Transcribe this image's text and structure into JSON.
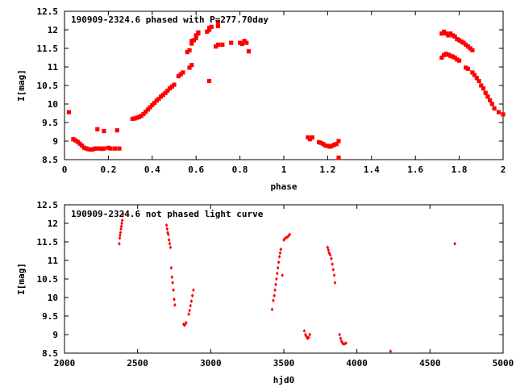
{
  "colors": {
    "points": "#ff0000",
    "axes": "#000000",
    "background": "#ffffff"
  },
  "chart_data": [
    {
      "type": "scatter",
      "title": "190909-2324.6 phased with P=277.70day",
      "xlabel": "phase",
      "ylabel": "I[mag]",
      "xlim": [
        0,
        2
      ],
      "ylim": [
        12.5,
        8.5
      ],
      "y_inverted": true,
      "xticks": [
        0,
        0.2,
        0.4,
        0.6,
        0.8,
        1,
        1.2,
        1.4,
        1.6,
        1.8,
        2
      ],
      "xtick_labels": [
        "0",
        "0.2",
        "0.4",
        "0.6",
        "0.8",
        "1",
        "1.2",
        "1.4",
        "1.6",
        "1.8",
        "2"
      ],
      "yticks": [
        8.5,
        9,
        9.5,
        10,
        10.5,
        11,
        11.5,
        12,
        12.5
      ],
      "ytick_labels": [
        "8.5",
        "9",
        "9.5",
        "10",
        "10.5",
        "11",
        "11.5",
        "12",
        "12.5"
      ],
      "grid": false,
      "points": [
        [
          0.02,
          9.78
        ],
        [
          0.04,
          9.05
        ],
        [
          0.05,
          9.02
        ],
        [
          0.06,
          8.98
        ],
        [
          0.07,
          8.93
        ],
        [
          0.08,
          8.88
        ],
        [
          0.09,
          8.82
        ],
        [
          0.1,
          8.8
        ],
        [
          0.11,
          8.78
        ],
        [
          0.12,
          8.77
        ],
        [
          0.13,
          8.78
        ],
        [
          0.14,
          8.8
        ],
        [
          0.15,
          8.8
        ],
        [
          0.16,
          8.8
        ],
        [
          0.17,
          8.79
        ],
        [
          0.18,
          8.8
        ],
        [
          0.2,
          8.82
        ],
        [
          0.21,
          8.8
        ],
        [
          0.23,
          8.8
        ],
        [
          0.25,
          8.8
        ],
        [
          0.15,
          9.32
        ],
        [
          0.18,
          9.27
        ],
        [
          0.24,
          9.29
        ],
        [
          0.31,
          9.6
        ],
        [
          0.32,
          9.61
        ],
        [
          0.33,
          9.63
        ],
        [
          0.34,
          9.65
        ],
        [
          0.35,
          9.68
        ],
        [
          0.36,
          9.73
        ],
        [
          0.37,
          9.79
        ],
        [
          0.38,
          9.85
        ],
        [
          0.39,
          9.91
        ],
        [
          0.4,
          9.97
        ],
        [
          0.41,
          10.03
        ],
        [
          0.42,
          10.09
        ],
        [
          0.43,
          10.14
        ],
        [
          0.44,
          10.2
        ],
        [
          0.45,
          10.25
        ],
        [
          0.46,
          10.3
        ],
        [
          0.47,
          10.36
        ],
        [
          0.48,
          10.42
        ],
        [
          0.49,
          10.47
        ],
        [
          0.5,
          10.52
        ],
        [
          0.52,
          10.75
        ],
        [
          0.53,
          10.8
        ],
        [
          0.54,
          10.85
        ],
        [
          0.57,
          10.98
        ],
        [
          0.58,
          11.05
        ],
        [
          0.56,
          11.4
        ],
        [
          0.57,
          11.45
        ],
        [
          0.58,
          11.63
        ],
        [
          0.58,
          11.7
        ],
        [
          0.59,
          11.72
        ],
        [
          0.6,
          11.78
        ],
        [
          0.6,
          11.85
        ],
        [
          0.61,
          11.9
        ],
        [
          0.61,
          11.93
        ],
        [
          0.65,
          11.95
        ],
        [
          0.66,
          12.0
        ],
        [
          0.66,
          12.05
        ],
        [
          0.67,
          12.08
        ],
        [
          0.66,
          10.62
        ],
        [
          0.69,
          11.55
        ],
        [
          0.7,
          11.6
        ],
        [
          0.7,
          12.1
        ],
        [
          0.7,
          12.2
        ],
        [
          0.72,
          11.6
        ],
        [
          0.76,
          11.65
        ],
        [
          0.8,
          11.65
        ],
        [
          0.81,
          11.62
        ],
        [
          0.82,
          11.7
        ],
        [
          0.83,
          11.65
        ],
        [
          0.84,
          11.42
        ],
        [
          1.11,
          9.1
        ],
        [
          1.12,
          9.05
        ],
        [
          1.13,
          9.1
        ],
        [
          1.16,
          8.97
        ],
        [
          1.17,
          8.95
        ],
        [
          1.18,
          8.92
        ],
        [
          1.19,
          8.88
        ],
        [
          1.2,
          8.87
        ],
        [
          1.21,
          8.85
        ],
        [
          1.22,
          8.87
        ],
        [
          1.23,
          8.9
        ],
        [
          1.24,
          8.92
        ],
        [
          1.25,
          8.55
        ],
        [
          1.25,
          9.0
        ],
        [
          1.72,
          11.25
        ],
        [
          1.73,
          11.32
        ],
        [
          1.74,
          11.35
        ],
        [
          1.75,
          11.33
        ],
        [
          1.76,
          11.3
        ],
        [
          1.77,
          11.28
        ],
        [
          1.78,
          11.25
        ],
        [
          1.79,
          11.2
        ],
        [
          1.8,
          11.17
        ],
        [
          1.72,
          11.9
        ],
        [
          1.73,
          11.95
        ],
        [
          1.74,
          11.9
        ],
        [
          1.75,
          11.85
        ],
        [
          1.76,
          11.9
        ],
        [
          1.77,
          11.85
        ],
        [
          1.78,
          11.82
        ],
        [
          1.79,
          11.75
        ],
        [
          1.8,
          11.72
        ],
        [
          1.81,
          11.68
        ],
        [
          1.82,
          11.65
        ],
        [
          1.83,
          11.6
        ],
        [
          1.84,
          11.55
        ],
        [
          1.85,
          11.5
        ],
        [
          1.86,
          11.45
        ],
        [
          1.83,
          10.98
        ],
        [
          1.84,
          10.95
        ],
        [
          1.86,
          10.85
        ],
        [
          1.87,
          10.78
        ],
        [
          1.88,
          10.7
        ],
        [
          1.89,
          10.62
        ],
        [
          1.9,
          10.5
        ],
        [
          1.91,
          10.42
        ],
        [
          1.92,
          10.3
        ],
        [
          1.93,
          10.2
        ],
        [
          1.94,
          10.1
        ],
        [
          1.95,
          10.0
        ],
        [
          1.96,
          9.88
        ],
        [
          1.98,
          9.78
        ],
        [
          2.0,
          9.72
        ]
      ]
    },
    {
      "type": "scatter",
      "title": "190909-2324.6 not phased light curve",
      "xlabel": "hjd0",
      "ylabel": "I[mag]",
      "xlim": [
        2000,
        5000
      ],
      "ylim": [
        12.5,
        8.5
      ],
      "y_inverted": true,
      "xticks": [
        2000,
        2500,
        3000,
        3500,
        4000,
        4500,
        5000
      ],
      "xtick_labels": [
        "2000",
        "2500",
        "3000",
        "3500",
        "4000",
        "4500",
        "5000"
      ],
      "yticks": [
        8.5,
        9,
        9.5,
        10,
        10.5,
        11,
        11.5,
        12,
        12.5
      ],
      "ytick_labels": [
        "8.5",
        "9",
        "9.5",
        "10",
        "10.5",
        "11",
        "11.5",
        "12",
        "12.5"
      ],
      "grid": false,
      "points": [
        [
          2375,
          11.45
        ],
        [
          2378,
          11.6
        ],
        [
          2380,
          11.68
        ],
        [
          2383,
          11.75
        ],
        [
          2386,
          11.85
        ],
        [
          2389,
          11.92
        ],
        [
          2392,
          12.0
        ],
        [
          2395,
          12.08
        ],
        [
          2400,
          12.25
        ],
        [
          2698,
          11.95
        ],
        [
          2702,
          11.85
        ],
        [
          2706,
          11.75
        ],
        [
          2710,
          11.7
        ],
        [
          2715,
          11.55
        ],
        [
          2720,
          11.45
        ],
        [
          2725,
          11.35
        ],
        [
          2730,
          10.8
        ],
        [
          2735,
          10.55
        ],
        [
          2740,
          10.4
        ],
        [
          2745,
          10.2
        ],
        [
          2750,
          9.95
        ],
        [
          2755,
          9.8
        ],
        [
          2815,
          9.28
        ],
        [
          2820,
          9.25
        ],
        [
          2826,
          9.28
        ],
        [
          2832,
          9.32
        ],
        [
          2850,
          9.55
        ],
        [
          2856,
          9.65
        ],
        [
          2862,
          9.78
        ],
        [
          2868,
          9.9
        ],
        [
          2875,
          10.05
        ],
        [
          2882,
          10.2
        ],
        [
          3420,
          9.68
        ],
        [
          3428,
          9.92
        ],
        [
          3435,
          10.05
        ],
        [
          3440,
          10.2
        ],
        [
          3445,
          10.35
        ],
        [
          3450,
          10.5
        ],
        [
          3455,
          10.65
        ],
        [
          3460,
          10.8
        ],
        [
          3465,
          10.95
        ],
        [
          3470,
          11.1
        ],
        [
          3475,
          11.2
        ],
        [
          3480,
          11.3
        ],
        [
          3490,
          10.6
        ],
        [
          3500,
          11.55
        ],
        [
          3510,
          11.6
        ],
        [
          3520,
          11.62
        ],
        [
          3530,
          11.65
        ],
        [
          3540,
          11.7
        ],
        [
          3640,
          9.1
        ],
        [
          3648,
          9.0
        ],
        [
          3655,
          8.95
        ],
        [
          3662,
          8.9
        ],
        [
          3670,
          8.92
        ],
        [
          3678,
          9.0
        ],
        [
          3800,
          11.35
        ],
        [
          3805,
          11.28
        ],
        [
          3810,
          11.2
        ],
        [
          3818,
          11.15
        ],
        [
          3825,
          11.05
        ],
        [
          3832,
          10.9
        ],
        [
          3838,
          10.75
        ],
        [
          3845,
          10.6
        ],
        [
          3850,
          10.4
        ],
        [
          3882,
          9.0
        ],
        [
          3888,
          8.9
        ],
        [
          3895,
          8.82
        ],
        [
          3900,
          8.78
        ],
        [
          3906,
          8.75
        ],
        [
          3915,
          8.75
        ],
        [
          3925,
          8.77
        ],
        [
          4230,
          8.55
        ],
        [
          4670,
          11.45
        ]
      ]
    }
  ]
}
